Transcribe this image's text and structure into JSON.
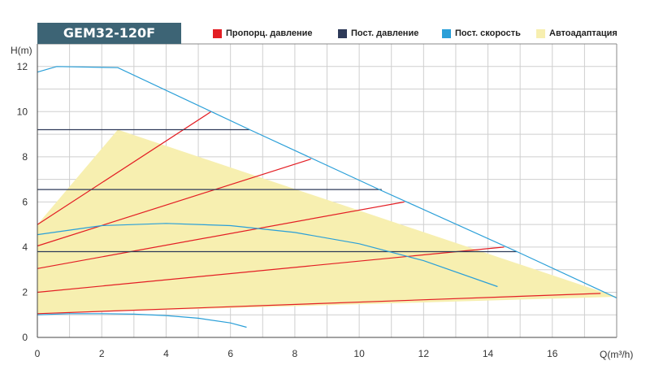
{
  "chart_data": {
    "type": "line",
    "title": "GEM32-120F",
    "xlabel": "Q(m³/h)",
    "ylabel": "H(m)",
    "xlim": [
      0,
      18
    ],
    "ylim": [
      0,
      13
    ],
    "xticks": [
      0,
      2,
      4,
      6,
      8,
      10,
      12,
      14,
      16
    ],
    "yticks": [
      0,
      2,
      4,
      6,
      8,
      10,
      12
    ],
    "grid": true,
    "legend_position": "top",
    "legend": [
      {
        "label": "Пропорц. давление",
        "color": "#e31e24"
      },
      {
        "label": "Пост. давление",
        "color": "#2e3a59"
      },
      {
        "label": "Пост. скорость",
        "color": "#2a9fd8"
      },
      {
        "label": "Автоадаптация",
        "color": "#f7efb0"
      }
    ],
    "autoadapt_region": {
      "x": [
        0,
        0,
        2.5,
        18,
        0
      ],
      "y": [
        1.05,
        5.0,
        9.2,
        1.8,
        1.05
      ]
    },
    "series": [
      {
        "group": "max",
        "color": "#2a9fd8",
        "x": [
          0,
          0.6,
          2.5,
          6.6,
          10.7,
          14.9,
          18.0
        ],
        "y": [
          11.75,
          12.0,
          11.95,
          9.2,
          6.5,
          3.8,
          1.75
        ]
      },
      {
        "group": "const_speed",
        "color": "#2a9fd8",
        "x": [
          0,
          2,
          4,
          6,
          8,
          10,
          12,
          14.3
        ],
        "y": [
          4.55,
          4.95,
          5.05,
          4.95,
          4.65,
          4.15,
          3.4,
          2.25
        ]
      },
      {
        "group": "const_speed",
        "color": "#2a9fd8",
        "x": [
          0,
          1,
          2,
          3,
          4,
          5,
          6,
          6.5
        ],
        "y": [
          1.0,
          1.05,
          1.05,
          1.03,
          0.97,
          0.85,
          0.64,
          0.45
        ]
      },
      {
        "group": "const_pressure",
        "color": "#2e3a59",
        "x": [
          0,
          6.6
        ],
        "y": [
          9.2,
          9.2
        ]
      },
      {
        "group": "const_pressure",
        "color": "#2e3a59",
        "x": [
          0,
          10.7
        ],
        "y": [
          6.55,
          6.55
        ]
      },
      {
        "group": "const_pressure",
        "color": "#2e3a59",
        "x": [
          0,
          14.9
        ],
        "y": [
          3.8,
          3.8
        ]
      },
      {
        "group": "prop_pressure",
        "color": "#e31e24",
        "x": [
          0,
          5.4
        ],
        "y": [
          5.0,
          10.0
        ]
      },
      {
        "group": "prop_pressure",
        "color": "#e31e24",
        "x": [
          0,
          8.5
        ],
        "y": [
          4.05,
          7.9
        ]
      },
      {
        "group": "prop_pressure",
        "color": "#e31e24",
        "x": [
          0,
          11.4
        ],
        "y": [
          3.05,
          6.0
        ]
      },
      {
        "group": "prop_pressure",
        "color": "#e31e24",
        "x": [
          0,
          14.5
        ],
        "y": [
          2.0,
          4.0
        ]
      },
      {
        "group": "prop_pressure",
        "color": "#e31e24",
        "x": [
          0,
          17.5
        ],
        "y": [
          1.05,
          1.95
        ]
      }
    ]
  }
}
